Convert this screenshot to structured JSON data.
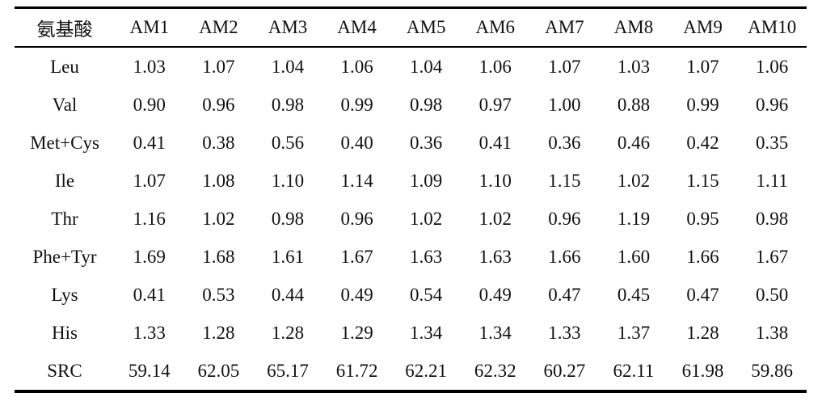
{
  "table": {
    "header": [
      "氨基酸",
      "AM1",
      "AM2",
      "AM3",
      "AM4",
      "AM5",
      "AM6",
      "AM7",
      "AM8",
      "AM9",
      "AM10"
    ],
    "rows": [
      [
        "Leu",
        "1.03",
        "1.07",
        "1.04",
        "1.06",
        "1.04",
        "1.06",
        "1.07",
        "1.03",
        "1.07",
        "1.06"
      ],
      [
        "Val",
        "0.90",
        "0.96",
        "0.98",
        "0.99",
        "0.98",
        "0.97",
        "1.00",
        "0.88",
        "0.99",
        "0.96"
      ],
      [
        "Met+Cys",
        "0.41",
        "0.38",
        "0.56",
        "0.40",
        "0.36",
        "0.41",
        "0.36",
        "0.46",
        "0.42",
        "0.35"
      ],
      [
        "Ile",
        "1.07",
        "1.08",
        "1.10",
        "1.14",
        "1.09",
        "1.10",
        "1.15",
        "1.02",
        "1.15",
        "1.11"
      ],
      [
        "Thr",
        "1.16",
        "1.02",
        "0.98",
        "0.96",
        "1.02",
        "1.02",
        "0.96",
        "1.19",
        "0.95",
        "0.98"
      ],
      [
        "Phe+Tyr",
        "1.69",
        "1.68",
        "1.61",
        "1.67",
        "1.63",
        "1.63",
        "1.66",
        "1.60",
        "1.66",
        "1.67"
      ],
      [
        "Lys",
        "0.41",
        "0.53",
        "0.44",
        "0.49",
        "0.54",
        "0.49",
        "0.47",
        "0.45",
        "0.47",
        "0.50"
      ],
      [
        "His",
        "1.33",
        "1.28",
        "1.28",
        "1.29",
        "1.34",
        "1.34",
        "1.33",
        "1.37",
        "1.28",
        "1.38"
      ],
      [
        "SRC",
        "59.14",
        "62.05",
        "65.17",
        "61.72",
        "62.21",
        "62.32",
        "60.27",
        "62.11",
        "61.98",
        "59.86"
      ]
    ]
  }
}
